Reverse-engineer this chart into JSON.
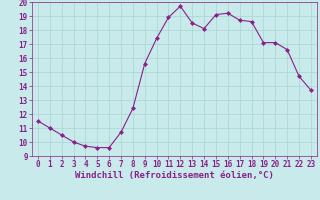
{
  "x": [
    0,
    1,
    2,
    3,
    4,
    5,
    6,
    7,
    8,
    9,
    10,
    11,
    12,
    13,
    14,
    15,
    16,
    17,
    18,
    19,
    20,
    21,
    22,
    23
  ],
  "y": [
    11.5,
    11.0,
    10.5,
    10.0,
    9.7,
    9.6,
    9.6,
    10.7,
    12.4,
    15.6,
    17.4,
    18.9,
    19.7,
    18.5,
    18.1,
    19.1,
    19.2,
    18.7,
    18.6,
    17.1,
    17.1,
    16.6,
    14.7,
    13.7
  ],
  "line_color": "#882288",
  "marker": "D",
  "marker_size": 2,
  "bg_color": "#c8eaea",
  "grid_color": "#aad4d4",
  "xlabel": "Windchill (Refroidissement éolien,°C)",
  "ylim": [
    9,
    20
  ],
  "xlim": [
    -0.5,
    23.5
  ],
  "yticks": [
    9,
    10,
    11,
    12,
    13,
    14,
    15,
    16,
    17,
    18,
    19,
    20
  ],
  "xticks": [
    0,
    1,
    2,
    3,
    4,
    5,
    6,
    7,
    8,
    9,
    10,
    11,
    12,
    13,
    14,
    15,
    16,
    17,
    18,
    19,
    20,
    21,
    22,
    23
  ],
  "tick_fontsize": 5.5,
  "xlabel_fontsize": 6.5
}
